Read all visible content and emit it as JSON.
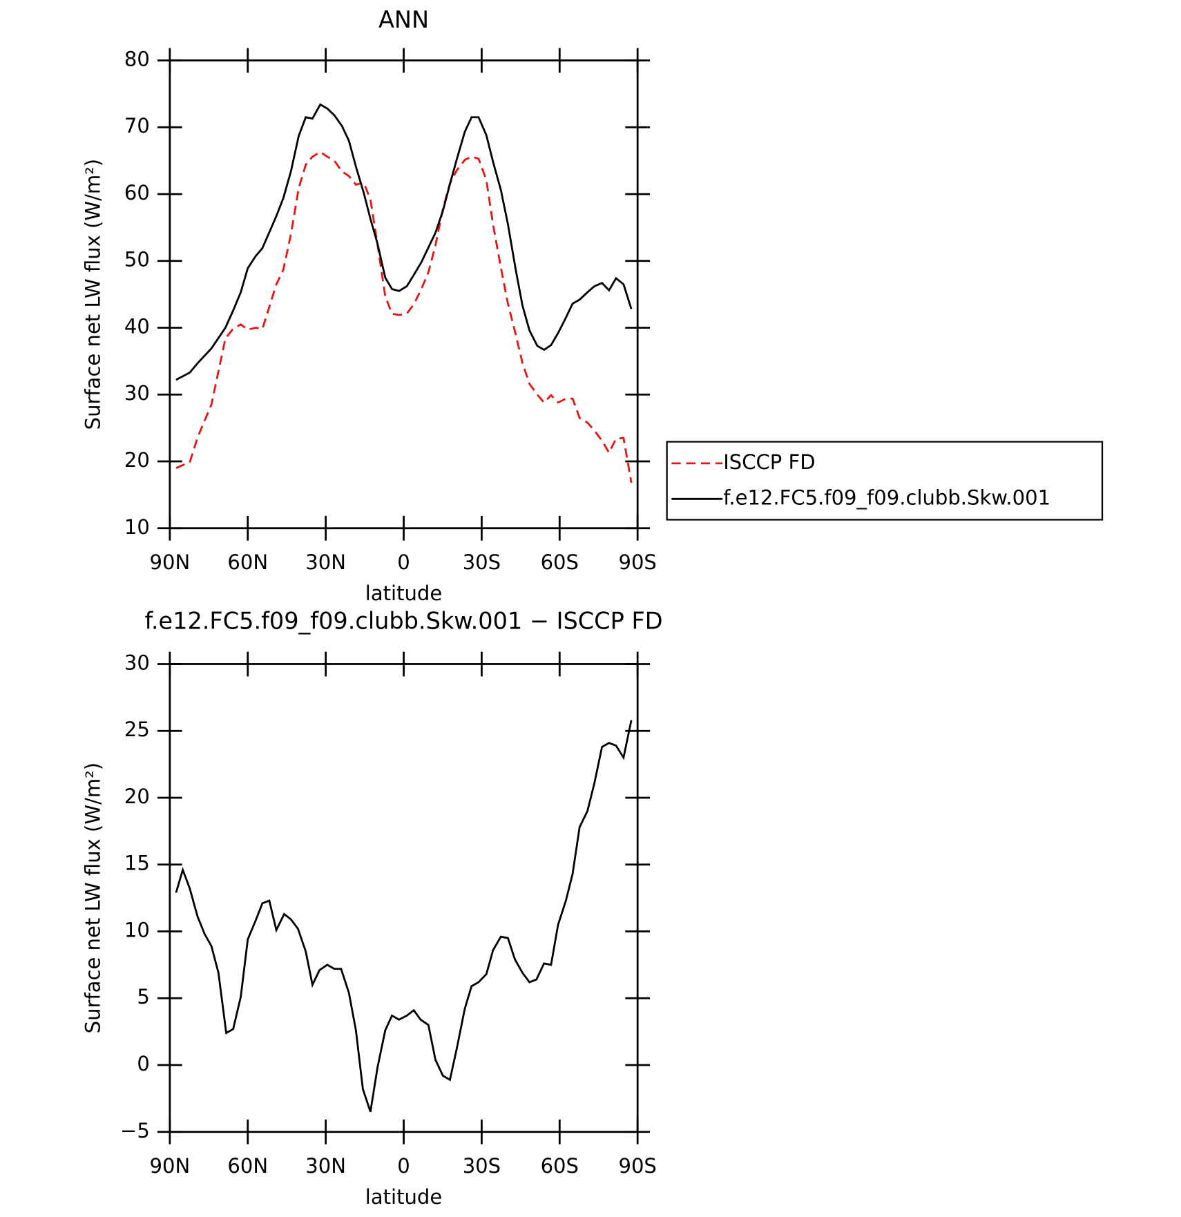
{
  "chart_data": [
    {
      "type": "line",
      "title": "ANN",
      "xlabel": "latitude",
      "ylabel": "Surface net LW flux (W/m²)",
      "xlim": [
        90,
        -90
      ],
      "xticks": [
        {
          "value": 90,
          "label": "90N"
        },
        {
          "value": 60,
          "label": "60N"
        },
        {
          "value": 30,
          "label": "30N"
        },
        0,
        {
          "value": -30,
          "label": "30S"
        },
        {
          "value": -60,
          "label": "60S"
        },
        {
          "value": -90,
          "label": "90S"
        }
      ],
      "ylim": [
        10,
        80
      ],
      "yticks": [
        10,
        20,
        30,
        40,
        50,
        60,
        70,
        80
      ],
      "legend": "right",
      "x": [
        87.6,
        82.3,
        79.3,
        74.0,
        68.6,
        65.7,
        62.7,
        60.0,
        57.0,
        54.4,
        49.0,
        46.3,
        43.4,
        40.4,
        37.7,
        35.1,
        32.1,
        29.4,
        26.7,
        23.8,
        21.1,
        18.4,
        15.4,
        12.8,
        10.1,
        7.1,
        4.5,
        1.8,
        -1.2,
        -3.9,
        -6.8,
        -9.5,
        -12.2,
        -15.1,
        -17.8,
        -20.5,
        -23.5,
        -26.1,
        -28.8,
        -31.8,
        -34.4,
        -37.4,
        -40.1,
        -43.1,
        -45.7,
        -48.4,
        -51.4,
        -54.0,
        -56.7,
        -59.4,
        -62.4,
        -65.0,
        -67.7,
        -70.7,
        -73.4,
        -76.3,
        -79.0,
        -81.7,
        -84.6,
        -87.6
      ],
      "series": [
        {
          "name": "ISCCP FD",
          "color": "#e8140f",
          "linestyle": "dashed",
          "values": [
            19.0,
            19.9,
            23.6,
            28.5,
            38.4,
            39.8,
            40.5,
            39.7,
            40.0,
            39.8,
            46.5,
            48.7,
            54.0,
            60.9,
            64.4,
            65.6,
            66.3,
            65.6,
            65.0,
            63.4,
            62.7,
            61.4,
            61.7,
            59.2,
            52.5,
            44.7,
            42.1,
            41.9,
            42.1,
            43.5,
            45.8,
            48.3,
            52.3,
            57.8,
            61.6,
            63.6,
            65.1,
            65.6,
            65.3,
            62.1,
            55.4,
            49.0,
            43.6,
            39.0,
            34.7,
            31.6,
            30.0,
            28.8,
            29.9,
            28.8,
            29.4,
            29.4,
            26.5,
            25.8,
            24.6,
            23.1,
            21.3,
            23.4,
            23.5,
            16.8
          ]
        },
        {
          "name": "f.e12.FC5.f09_f09.clubb.Skw.001",
          "color": "#000000",
          "linestyle": "solid",
          "values": [
            32.2,
            33.3,
            34.7,
            36.9,
            40.0,
            42.5,
            45.3,
            48.9,
            50.7,
            51.9,
            56.7,
            59.4,
            63.4,
            68.7,
            71.5,
            71.3,
            73.4,
            72.8,
            71.8,
            70.2,
            68.0,
            64.1,
            60.2,
            56.3,
            52.6,
            47.5,
            45.8,
            45.5,
            46.2,
            47.9,
            49.8,
            52.0,
            54.2,
            57.5,
            61.5,
            65.3,
            69.3,
            71.5,
            71.5,
            68.8,
            64.8,
            60.6,
            55.5,
            48.7,
            43.3,
            39.6,
            37.3,
            36.7,
            37.4,
            39.2,
            41.5,
            43.6,
            44.2,
            45.3,
            46.2,
            46.7,
            45.6,
            47.4,
            46.5,
            42.8
          ]
        }
      ]
    },
    {
      "type": "line",
      "title": "f.e12.FC5.f09_f09.clubb.Skw.001 − ISCCP FD",
      "xlabel": "latitude",
      "ylabel": "Surface net LW flux (W/m²)",
      "xlim": [
        90,
        -90
      ],
      "xticks": [
        {
          "value": 90,
          "label": "90N"
        },
        {
          "value": 60,
          "label": "60N"
        },
        {
          "value": 30,
          "label": "30N"
        },
        0,
        {
          "value": -30,
          "label": "30S"
        },
        {
          "value": -60,
          "label": "60S"
        },
        {
          "value": -90,
          "label": "90S"
        }
      ],
      "ylim": [
        -5,
        30
      ],
      "yticks": [
        {
          "value": -5,
          "label": "−5"
        },
        0,
        5,
        10,
        15,
        20,
        25,
        30
      ],
      "x": [
        87.6,
        85.0,
        82.3,
        79.3,
        76.6,
        74.0,
        71.3,
        68.3,
        65.6,
        62.7,
        60.0,
        57.0,
        54.4,
        51.7,
        49.0,
        46.0,
        43.4,
        40.7,
        37.7,
        35.1,
        32.4,
        29.4,
        26.7,
        24.1,
        21.1,
        18.4,
        15.7,
        12.8,
        10.1,
        7.1,
        4.5,
        1.8,
        -1.2,
        -3.9,
        -6.5,
        -9.5,
        -12.2,
        -15.1,
        -17.8,
        -20.5,
        -23.5,
        -26.1,
        -28.8,
        -31.8,
        -34.4,
        -37.4,
        -40.1,
        -42.8,
        -45.7,
        -48.4,
        -51.1,
        -54.0,
        -56.7,
        -59.4,
        -62.4,
        -65.0,
        -67.7,
        -70.7,
        -73.4,
        -76.3,
        -79.0,
        -81.7,
        -84.6,
        -87.6
      ],
      "series": [
        {
          "color": "#000000",
          "linestyle": "solid",
          "values": [
            12.9,
            14.6,
            13.2,
            11.1,
            9.8,
            8.9,
            6.9,
            2.4,
            2.7,
            5.1,
            9.4,
            10.8,
            12.1,
            12.3,
            10.1,
            11.3,
            10.9,
            10.2,
            8.5,
            6.0,
            7.1,
            7.5,
            7.2,
            7.2,
            5.4,
            2.6,
            -1.8,
            -3.5,
            -0.2,
            2.6,
            3.7,
            3.4,
            3.7,
            4.1,
            3.4,
            3.0,
            0.4,
            -0.8,
            -1.1,
            1.3,
            4.2,
            5.9,
            6.2,
            6.8,
            8.6,
            9.6,
            9.5,
            7.9,
            6.9,
            6.2,
            6.4,
            7.6,
            7.5,
            10.5,
            12.3,
            14.3,
            17.8,
            19.0,
            21.1,
            23.8,
            24.1,
            23.9,
            23.0,
            25.8
          ]
        }
      ]
    }
  ]
}
